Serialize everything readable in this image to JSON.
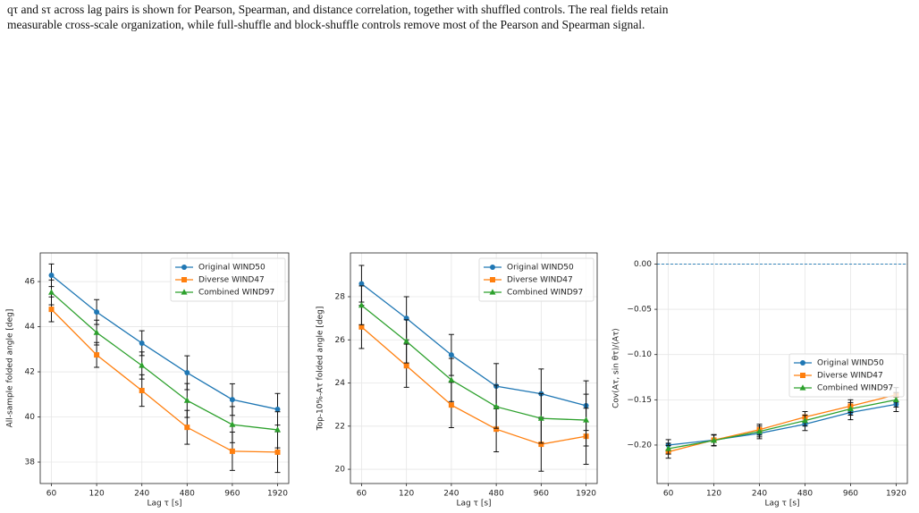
{
  "caption_lines": [
    "qτ and sτ across lag pairs is shown for Pearson, Spearman, and distance correlation, together with shuffled controls. The real fields retain",
    "measurable cross-scale organization, while full-shuffle and block-shuffle controls remove most of the Pearson and Spearman signal."
  ],
  "chart_data": [
    {
      "type": "line",
      "x_label": "Lag τ [s]",
      "y_label": "All-sample folded angle [deg]",
      "categories": [
        "60",
        "120",
        "240",
        "480",
        "960",
        "1920"
      ],
      "ylim": [
        37.05,
        47.27
      ],
      "yticks": [
        38,
        40,
        42,
        44,
        46
      ],
      "grid": true,
      "legend": "upper right",
      "series": [
        {
          "name": "Original WIND50",
          "color": "#1f77b4",
          "marker": "circle",
          "values": [
            46.28,
            44.65,
            43.27,
            41.96,
            40.77,
            40.34
          ],
          "errors": [
            0.5,
            0.55,
            0.55,
            0.75,
            0.7,
            0.7
          ]
        },
        {
          "name": "Diverse WIND47",
          "color": "#ff7f0e",
          "marker": "square",
          "values": [
            44.77,
            42.75,
            41.17,
            39.54,
            38.48,
            38.44
          ],
          "errors": [
            0.55,
            0.55,
            0.7,
            0.75,
            0.85,
            0.9
          ]
        },
        {
          "name": "Combined WIND97",
          "color": "#2ca02c",
          "marker": "triangle",
          "values": [
            45.52,
            43.74,
            42.28,
            40.73,
            39.66,
            39.43
          ],
          "errors": [
            0.55,
            0.55,
            0.6,
            0.75,
            0.8,
            0.8
          ]
        }
      ]
    },
    {
      "type": "line",
      "x_label": "Lag τ [s]",
      "y_label": "Top-10%-Aτ folded angle [deg]",
      "categories": [
        "60",
        "120",
        "240",
        "480",
        "960",
        "1920"
      ],
      "ylim": [
        19.34,
        30.03
      ],
      "yticks": [
        20,
        22,
        24,
        26,
        28
      ],
      "grid": true,
      "legend": "upper right",
      "series": [
        {
          "name": "Original WIND50",
          "color": "#1f77b4",
          "marker": "circle",
          "values": [
            28.6,
            27.0,
            25.3,
            23.85,
            23.5,
            22.95
          ],
          "errors": [
            0.85,
            1.0,
            0.95,
            1.05,
            1.15,
            1.15
          ]
        },
        {
          "name": "Diverse WIND47",
          "color": "#ff7f0e",
          "marker": "square",
          "values": [
            26.6,
            24.8,
            22.98,
            21.86,
            21.16,
            21.53
          ],
          "errors": [
            1.0,
            1.0,
            1.05,
            1.05,
            1.25,
            1.3
          ]
        },
        {
          "name": "Combined WIND97",
          "color": "#2ca02c",
          "marker": "triangle",
          "values": [
            27.6,
            25.93,
            24.14,
            22.9,
            22.36,
            22.28
          ],
          "errors": [
            0.9,
            1.0,
            1.0,
            1.0,
            1.15,
            1.2
          ]
        }
      ]
    },
    {
      "type": "line",
      "x_label": "Lag τ [s]",
      "y_label": "Cov(Aτ, sin θτ)/⟨Aτ⟩",
      "categories": [
        "60",
        "120",
        "240",
        "480",
        "960",
        "1920"
      ],
      "ylim": [
        -0.2425,
        0.0123
      ],
      "yticks": [
        {
          "value": -0.2,
          "label": "−0.20"
        },
        {
          "value": -0.15,
          "label": "−0.15"
        },
        {
          "value": -0.1,
          "label": "−0.10"
        },
        {
          "value": -0.05,
          "label": "−0.05"
        },
        {
          "value": 0,
          "label": "0.00"
        }
      ],
      "grid": true,
      "legend": "center right",
      "hline": 0,
      "series": [
        {
          "name": "Original WIND50",
          "color": "#1f77b4",
          "marker": "circle",
          "values": [
            -0.2,
            -0.1945,
            -0.187,
            -0.177,
            -0.164,
            -0.155
          ],
          "errors": [
            0.006,
            0.006,
            0.006,
            0.007,
            0.008,
            0.008
          ]
        },
        {
          "name": "Diverse WIND47",
          "color": "#ff7f0e",
          "marker": "square",
          "values": [
            -0.2075,
            -0.1945,
            -0.183,
            -0.169,
            -0.157,
            -0.1445
          ],
          "errors": [
            0.007,
            0.006,
            0.006,
            0.006,
            0.007,
            0.008
          ]
        },
        {
          "name": "Combined WIND97",
          "color": "#2ca02c",
          "marker": "triangle",
          "values": [
            -0.204,
            -0.195,
            -0.185,
            -0.173,
            -0.16,
            -0.15
          ],
          "errors": [
            0.006,
            0.006,
            0.006,
            0.006,
            0.007,
            0.008
          ]
        }
      ]
    }
  ]
}
